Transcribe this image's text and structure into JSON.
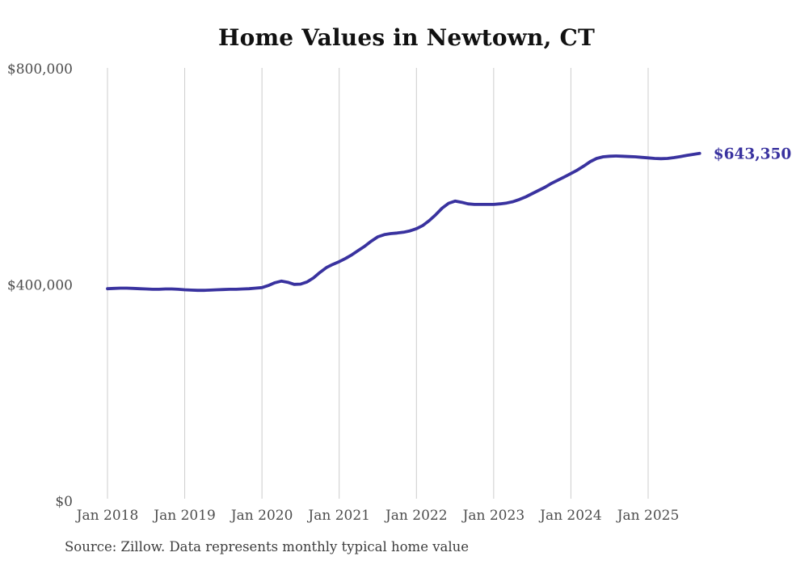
{
  "chart_data": {
    "type": "line",
    "title": "Home Values in Newtown, CT",
    "source": "Source: Zillow. Data represents monthly typical home value",
    "series_name": "Monthly typical home value",
    "legend": "none",
    "grid": "vertical-only",
    "ylim": [
      0,
      800000
    ],
    "y_tick_values": [
      0,
      400000,
      800000
    ],
    "y_tick_labels": [
      "$0",
      "$400,000",
      "$800,000"
    ],
    "x_tick_month_indices": [
      0,
      12,
      24,
      36,
      48,
      60,
      72,
      84
    ],
    "x_tick_labels": [
      "Jan 2018",
      "Jan 2019",
      "Jan 2020",
      "Jan 2021",
      "Jan 2022",
      "Jan 2023",
      "Jan 2024",
      "Jan 2025"
    ],
    "x_monthly": {
      "start": "Jan 2018",
      "end": "Sep 2025",
      "count": 93
    },
    "current_value": 643350,
    "current_value_label": "$643,350",
    "values": [
      393000,
      393500,
      394000,
      394000,
      393500,
      393000,
      392500,
      392000,
      392000,
      392500,
      392500,
      392000,
      391000,
      390500,
      390000,
      390000,
      390500,
      391000,
      391500,
      392000,
      392000,
      392500,
      393000,
      394000,
      395000,
      399000,
      404000,
      407000,
      405000,
      401000,
      401500,
      405500,
      413000,
      423000,
      432000,
      438000,
      443000,
      449000,
      456000,
      464000,
      472000,
      481000,
      489000,
      493000,
      495000,
      496000,
      497500,
      500000,
      504000,
      510000,
      519000,
      530000,
      542000,
      551000,
      555000,
      553000,
      550000,
      549000,
      549000,
      549000,
      549000,
      550000,
      551500,
      554000,
      558000,
      563000,
      569000,
      575000,
      581000,
      588000,
      594000,
      600000,
      606000,
      612500,
      620000,
      628000,
      634000,
      637000,
      638000,
      638500,
      638000,
      637500,
      637000,
      636000,
      635000,
      634000,
      633500,
      634000,
      635500,
      637500,
      639500,
      641500,
      643350
    ],
    "colors": {
      "line": "#39329f",
      "grid": "#cccccc",
      "tick_label": "#4d4d4d",
      "title": "#111111",
      "source": "#3d3d3d",
      "background": "#ffffff"
    }
  }
}
